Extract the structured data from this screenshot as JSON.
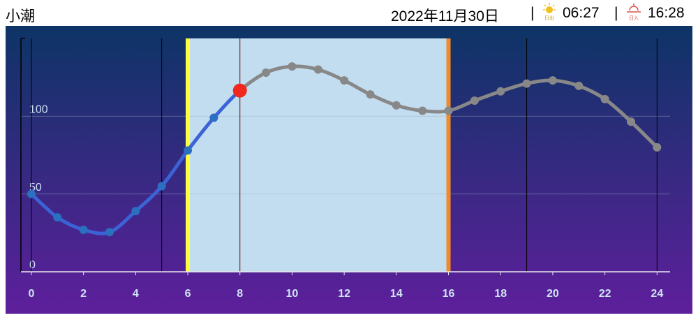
{
  "header": {
    "title": "小潮",
    "date": "2022年11月30日",
    "separator": "|",
    "sunrise_icon_label": "日出",
    "sunrise": "06:27",
    "sunset_icon_label": "日入",
    "sunset": "16:28"
  },
  "chart_data": {
    "type": "line",
    "x": [
      0,
      1,
      2,
      3,
      4,
      5,
      6,
      7,
      8,
      9,
      10,
      11,
      12,
      13,
      14,
      15,
      16,
      17,
      18,
      19,
      20,
      21,
      22,
      23,
      24
    ],
    "values": [
      50,
      35,
      27,
      25.5,
      39,
      55,
      78,
      99,
      116.5,
      128,
      132,
      130,
      123,
      114,
      107,
      103.5,
      103.5,
      110,
      116,
      121,
      123,
      119.5,
      111,
      96.5,
      80
    ],
    "past_color": "#3b63d6",
    "past_point_color": "#2a6fc0",
    "future_color": "#888888",
    "now_color": "#f0281e",
    "now_x": 8,
    "daylight_band": [
      6,
      16
    ],
    "daylight_color": "#c3ddf0",
    "sunrise_line_color": "#ffff40",
    "sunset_line_color": "#f08a2a",
    "vlines": [
      0,
      5,
      19,
      24
    ],
    "xlim": [
      -0.4,
      24.5
    ],
    "ylim": [
      0,
      150
    ],
    "xticks": [
      0,
      2,
      4,
      6,
      8,
      10,
      12,
      14,
      16,
      18,
      20,
      22,
      24
    ],
    "yticks": [
      0,
      50,
      100
    ],
    "grid": true
  }
}
